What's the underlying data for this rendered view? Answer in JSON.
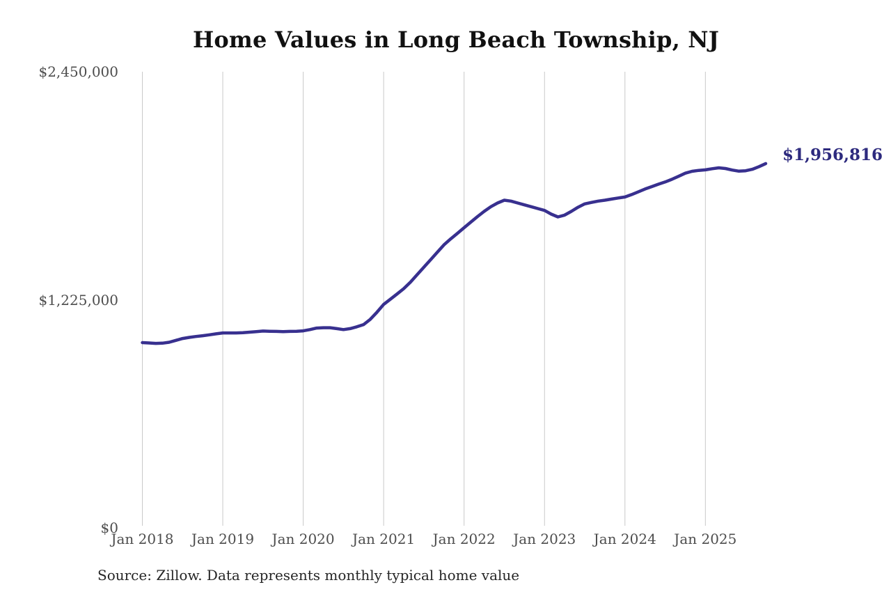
{
  "chart_data": {
    "type": "line",
    "title": "Home Values in Long Beach Township, NJ",
    "source_note": "Source: Zillow. Data represents monthly typical home value",
    "series_name": "Monthly typical home value",
    "x_interval": "monthly",
    "x_range": [
      "Jan 2018",
      "Oct 2025"
    ],
    "x_tick_labels": [
      "Jan 2018",
      "Jan 2019",
      "Jan 2020",
      "Jan 2021",
      "Jan 2022",
      "Jan 2023",
      "Jan 2024",
      "Jan 2025"
    ],
    "y_ticks": [
      {
        "label": "$0",
        "value": 0
      },
      {
        "label": "$1,225,000",
        "value": 1225000
      },
      {
        "label": "$2,450,000",
        "value": 2450000
      }
    ],
    "ylim": [
      0,
      2450000
    ],
    "grid": "vertical-only",
    "end_label": "$1,956,816",
    "last_value": 1956816,
    "values": [
      995000,
      993000,
      991000,
      992000,
      997000,
      1007000,
      1017000,
      1023000,
      1028000,
      1032000,
      1037000,
      1042000,
      1047000,
      1047000,
      1047000,
      1048000,
      1051000,
      1054000,
      1057000,
      1056000,
      1055000,
      1054000,
      1055000,
      1056000,
      1058000,
      1065000,
      1073000,
      1075000,
      1075000,
      1070000,
      1065000,
      1070000,
      1080000,
      1092000,
      1120000,
      1158000,
      1200000,
      1228000,
      1256000,
      1285000,
      1320000,
      1360000,
      1400000,
      1440000,
      1480000,
      1520000,
      1552000,
      1582000,
      1612000,
      1642000,
      1672000,
      1700000,
      1725000,
      1745000,
      1760000,
      1755000,
      1745000,
      1735000,
      1725000,
      1715000,
      1705000,
      1685000,
      1670000,
      1680000,
      1700000,
      1722000,
      1740000,
      1748000,
      1755000,
      1760000,
      1766000,
      1772000,
      1777000,
      1790000,
      1805000,
      1820000,
      1833000,
      1846000,
      1858000,
      1872000,
      1888000,
      1905000,
      1915000,
      1920000,
      1923000,
      1929000,
      1934000,
      1930000,
      1922000,
      1916000,
      1918000,
      1926000,
      1940000,
      1956816
    ],
    "colors": {
      "line": "#38308f",
      "end_label": "#2d2a7e",
      "gridline": "#c9c9c9",
      "axis_text": "#4d4d4d",
      "title_text": "#111111",
      "source_text": "#262626",
      "background": "#ffffff"
    }
  }
}
